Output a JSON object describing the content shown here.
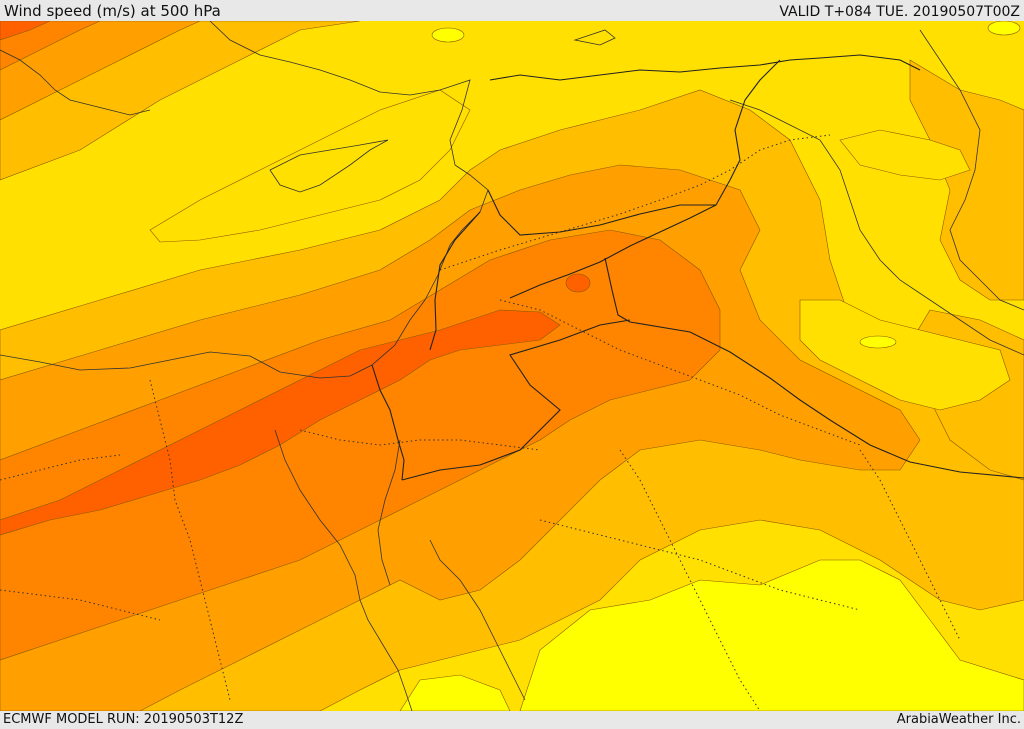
{
  "header": {
    "title": "Wind speed (m/s) at 500 hPa",
    "valid": "VALID T+084 TUE. 20190507T00Z"
  },
  "footer": {
    "model_run": "ECMWF MODEL RUN: 20190503T12Z",
    "credit": "ArabiaWeather Inc."
  },
  "map": {
    "colors": {
      "band_lightest": "#ffff00",
      "band_light": "#ffe000",
      "band_mid": "#ffbe00",
      "band_orange": "#ffa000",
      "band_dark_orange": "#ff8400",
      "band_red_orange": "#ff6000"
    }
  }
}
